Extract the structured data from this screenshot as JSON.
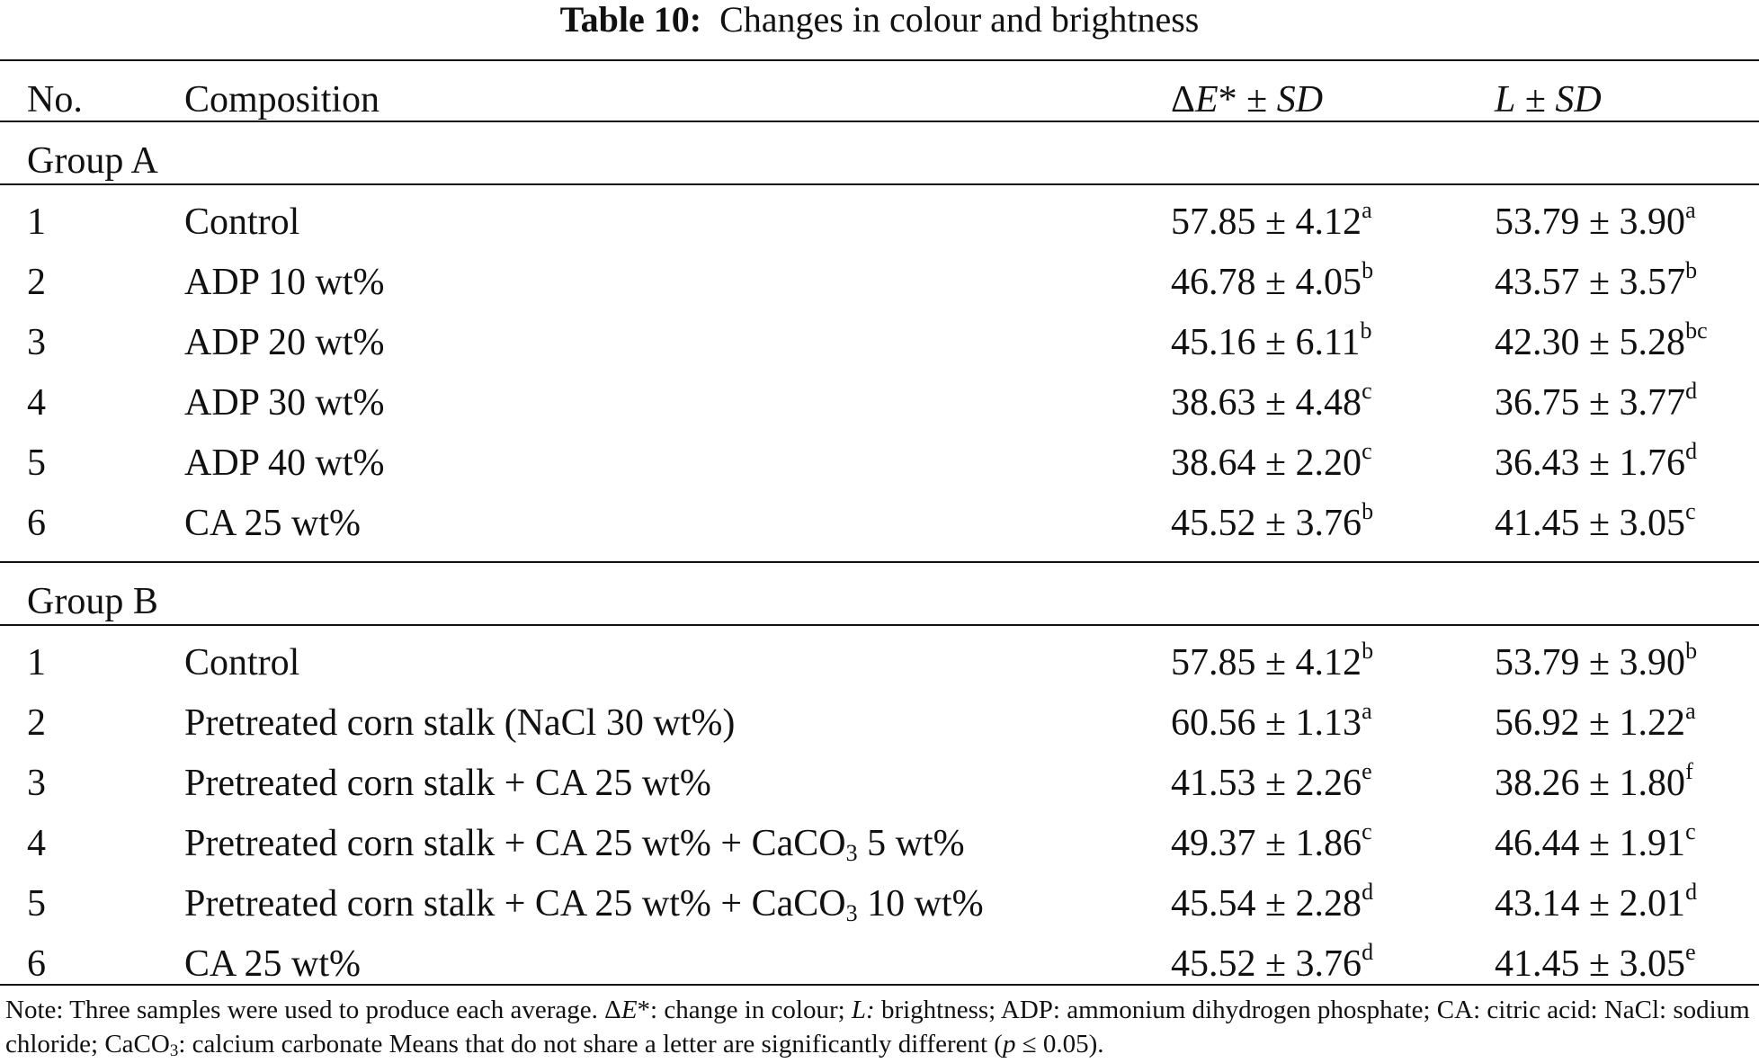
{
  "title": {
    "label": "Table 10:",
    "text": "Changes in colour and brightness"
  },
  "headers": {
    "no": "No.",
    "composition": "Composition",
    "delta_sym": "Δ",
    "delta_e": "E",
    "delta_star": "* ± ",
    "sd": "SD",
    "l": "L",
    "l_pm": " ± ",
    "l_sd": "SD"
  },
  "groups": [
    {
      "name": "Group A",
      "rows": [
        {
          "no": "1",
          "comp": "Control",
          "de": "57.85 ± 4.12",
          "de_sup": "a",
          "l": "53.79 ± 3.90",
          "l_sup": "a"
        },
        {
          "no": "2",
          "comp": "ADP 10 wt%",
          "de": "46.78 ± 4.05",
          "de_sup": "b",
          "l": "43.57 ± 3.57",
          "l_sup": "b"
        },
        {
          "no": "3",
          "comp": "ADP 20 wt%",
          "de": "45.16 ± 6.11",
          "de_sup": "b",
          "l": "42.30 ± 5.28",
          "l_sup": "bc"
        },
        {
          "no": "4",
          "comp": "ADP 30 wt%",
          "de": "38.63 ± 4.48",
          "de_sup": "c",
          "l": "36.75 ± 3.77",
          "l_sup": "d"
        },
        {
          "no": "5",
          "comp": "ADP 40 wt%",
          "de": "38.64 ± 2.20",
          "de_sup": "c",
          "l": "36.43 ± 1.76",
          "l_sup": "d"
        },
        {
          "no": "6",
          "comp": "CA 25 wt%",
          "de": "45.52 ± 3.76",
          "de_sup": "b",
          "l": "41.45 ± 3.05",
          "l_sup": "c"
        }
      ]
    },
    {
      "name": "Group B",
      "rows": [
        {
          "no": "1",
          "comp": "Control",
          "de": "57.85 ± 4.12",
          "de_sup": "b",
          "l": "53.79 ± 3.90",
          "l_sup": "b"
        },
        {
          "no": "2",
          "comp": "Pretreated corn stalk (NaCl 30 wt%)",
          "de": "60.56 ± 1.13",
          "de_sup": "a",
          "l": "56.92 ± 1.22",
          "l_sup": "a"
        },
        {
          "no": "3",
          "comp": "Pretreated corn stalk + CA 25 wt%",
          "de": "41.53 ± 2.26",
          "de_sup": "e",
          "l": "38.26 ± 1.80",
          "l_sup": "f"
        },
        {
          "no": "4",
          "comp_pre": "Pretreated corn stalk + CA 25 wt% + CaCO",
          "comp_sub": "3",
          "comp_post": " 5 wt%",
          "de": "49.37 ± 1.86",
          "de_sup": "c",
          "l": "46.44 ± 1.91",
          "l_sup": "c"
        },
        {
          "no": "5",
          "comp_pre": "Pretreated corn stalk + CA 25 wt% + CaCO",
          "comp_sub": "3",
          "comp_post": " 10 wt%",
          "de": "45.54 ± 2.28",
          "de_sup": "d",
          "l": "43.14 ± 2.01",
          "l_sup": "d"
        },
        {
          "no": "6",
          "comp": "CA 25 wt%",
          "de": "45.52 ± 3.76",
          "de_sup": "d",
          "l": "41.45 ± 3.05",
          "l_sup": "e"
        }
      ]
    }
  ],
  "note": {
    "p1": "Note: Three samples were used to produce each average. Δ",
    "e_it": "E",
    "p2": "*: change in colour; ",
    "l_it": "L:",
    "p3": " brightness; ADP: ammonium dihydrogen phosphate; CA: citric acid: NaCl: sodium chloride; CaCO",
    "sub": "3",
    "p4": ": calcium carbonate Means that do not share a letter are significantly different (",
    "p_it": "p",
    "p5": " ≤ 0.05)."
  }
}
